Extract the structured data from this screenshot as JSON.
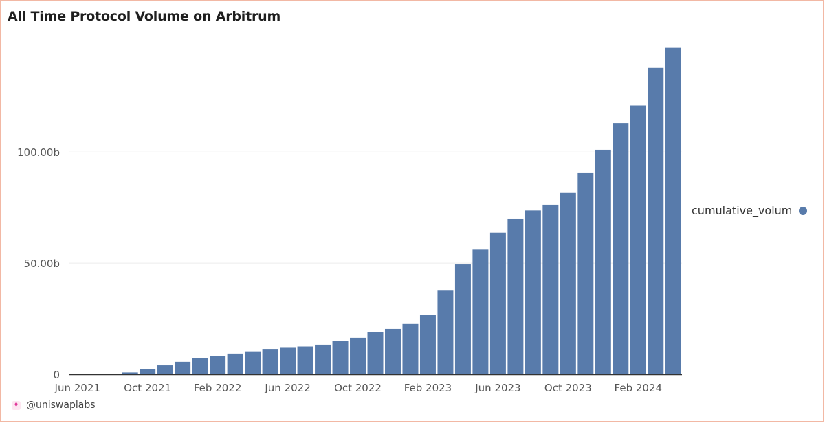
{
  "title": "All Time Protocol Volume on Arbitrum",
  "legend": {
    "label": "cumulative_volum",
    "color": "#587bab"
  },
  "watermark": {
    "handle": "@uniswaplabs",
    "icon": "unicorn-icon"
  },
  "colors": {
    "bar": "#587bab",
    "grid": "#ececec",
    "axis": "#333333",
    "border": "#f2b8a4"
  },
  "chart_data": {
    "type": "bar",
    "title": "All Time Protocol Volume on Arbitrum",
    "xlabel": "",
    "ylabel": "",
    "ylim": [
      0,
      147
    ],
    "grid": true,
    "legend_position": "right",
    "y_ticks": [
      {
        "value": 0,
        "label": "0"
      },
      {
        "value": 50,
        "label": "50.00b"
      },
      {
        "value": 100,
        "label": "100.00b"
      }
    ],
    "x_ticks": [
      {
        "index": 0,
        "label": "Jun 2021"
      },
      {
        "index": 4,
        "label": "Oct 2021"
      },
      {
        "index": 8,
        "label": "Feb 2022"
      },
      {
        "index": 12,
        "label": "Jun 2022"
      },
      {
        "index": 16,
        "label": "Oct 2022"
      },
      {
        "index": 20,
        "label": "Feb 2023"
      },
      {
        "index": 24,
        "label": "Jun 2023"
      },
      {
        "index": 28,
        "label": "Oct 2023"
      },
      {
        "index": 32,
        "label": "Feb 2024"
      }
    ],
    "categories": [
      "Jun 2021",
      "Jul 2021",
      "Aug 2021",
      "Sep 2021",
      "Oct 2021",
      "Nov 2021",
      "Dec 2021",
      "Jan 2022",
      "Feb 2022",
      "Mar 2022",
      "Apr 2022",
      "May 2022",
      "Jun 2022",
      "Jul 2022",
      "Aug 2022",
      "Sep 2022",
      "Oct 2022",
      "Nov 2022",
      "Dec 2022",
      "Jan 2023",
      "Feb 2023",
      "Mar 2023",
      "Apr 2023",
      "May 2023",
      "Jun 2023",
      "Jul 2023",
      "Aug 2023",
      "Sep 2023",
      "Oct 2023",
      "Nov 2023",
      "Dec 2023",
      "Jan 2024",
      "Feb 2024",
      "Mar 2024",
      "Apr 2024"
    ],
    "series": [
      {
        "name": "cumulative_volum",
        "values": [
          0.05,
          0.1,
          0.2,
          0.8,
          2.2,
          4.0,
          5.6,
          7.3,
          8.1,
          9.3,
          10.3,
          11.4,
          11.9,
          12.5,
          13.3,
          14.9,
          16.4,
          18.9,
          20.4,
          22.6,
          26.8,
          37.6,
          49.4,
          56.1,
          63.7,
          69.8,
          73.7,
          76.3,
          81.6,
          90.5,
          101.0,
          113.0,
          120.9,
          137.8,
          146.8
        ]
      }
    ]
  }
}
